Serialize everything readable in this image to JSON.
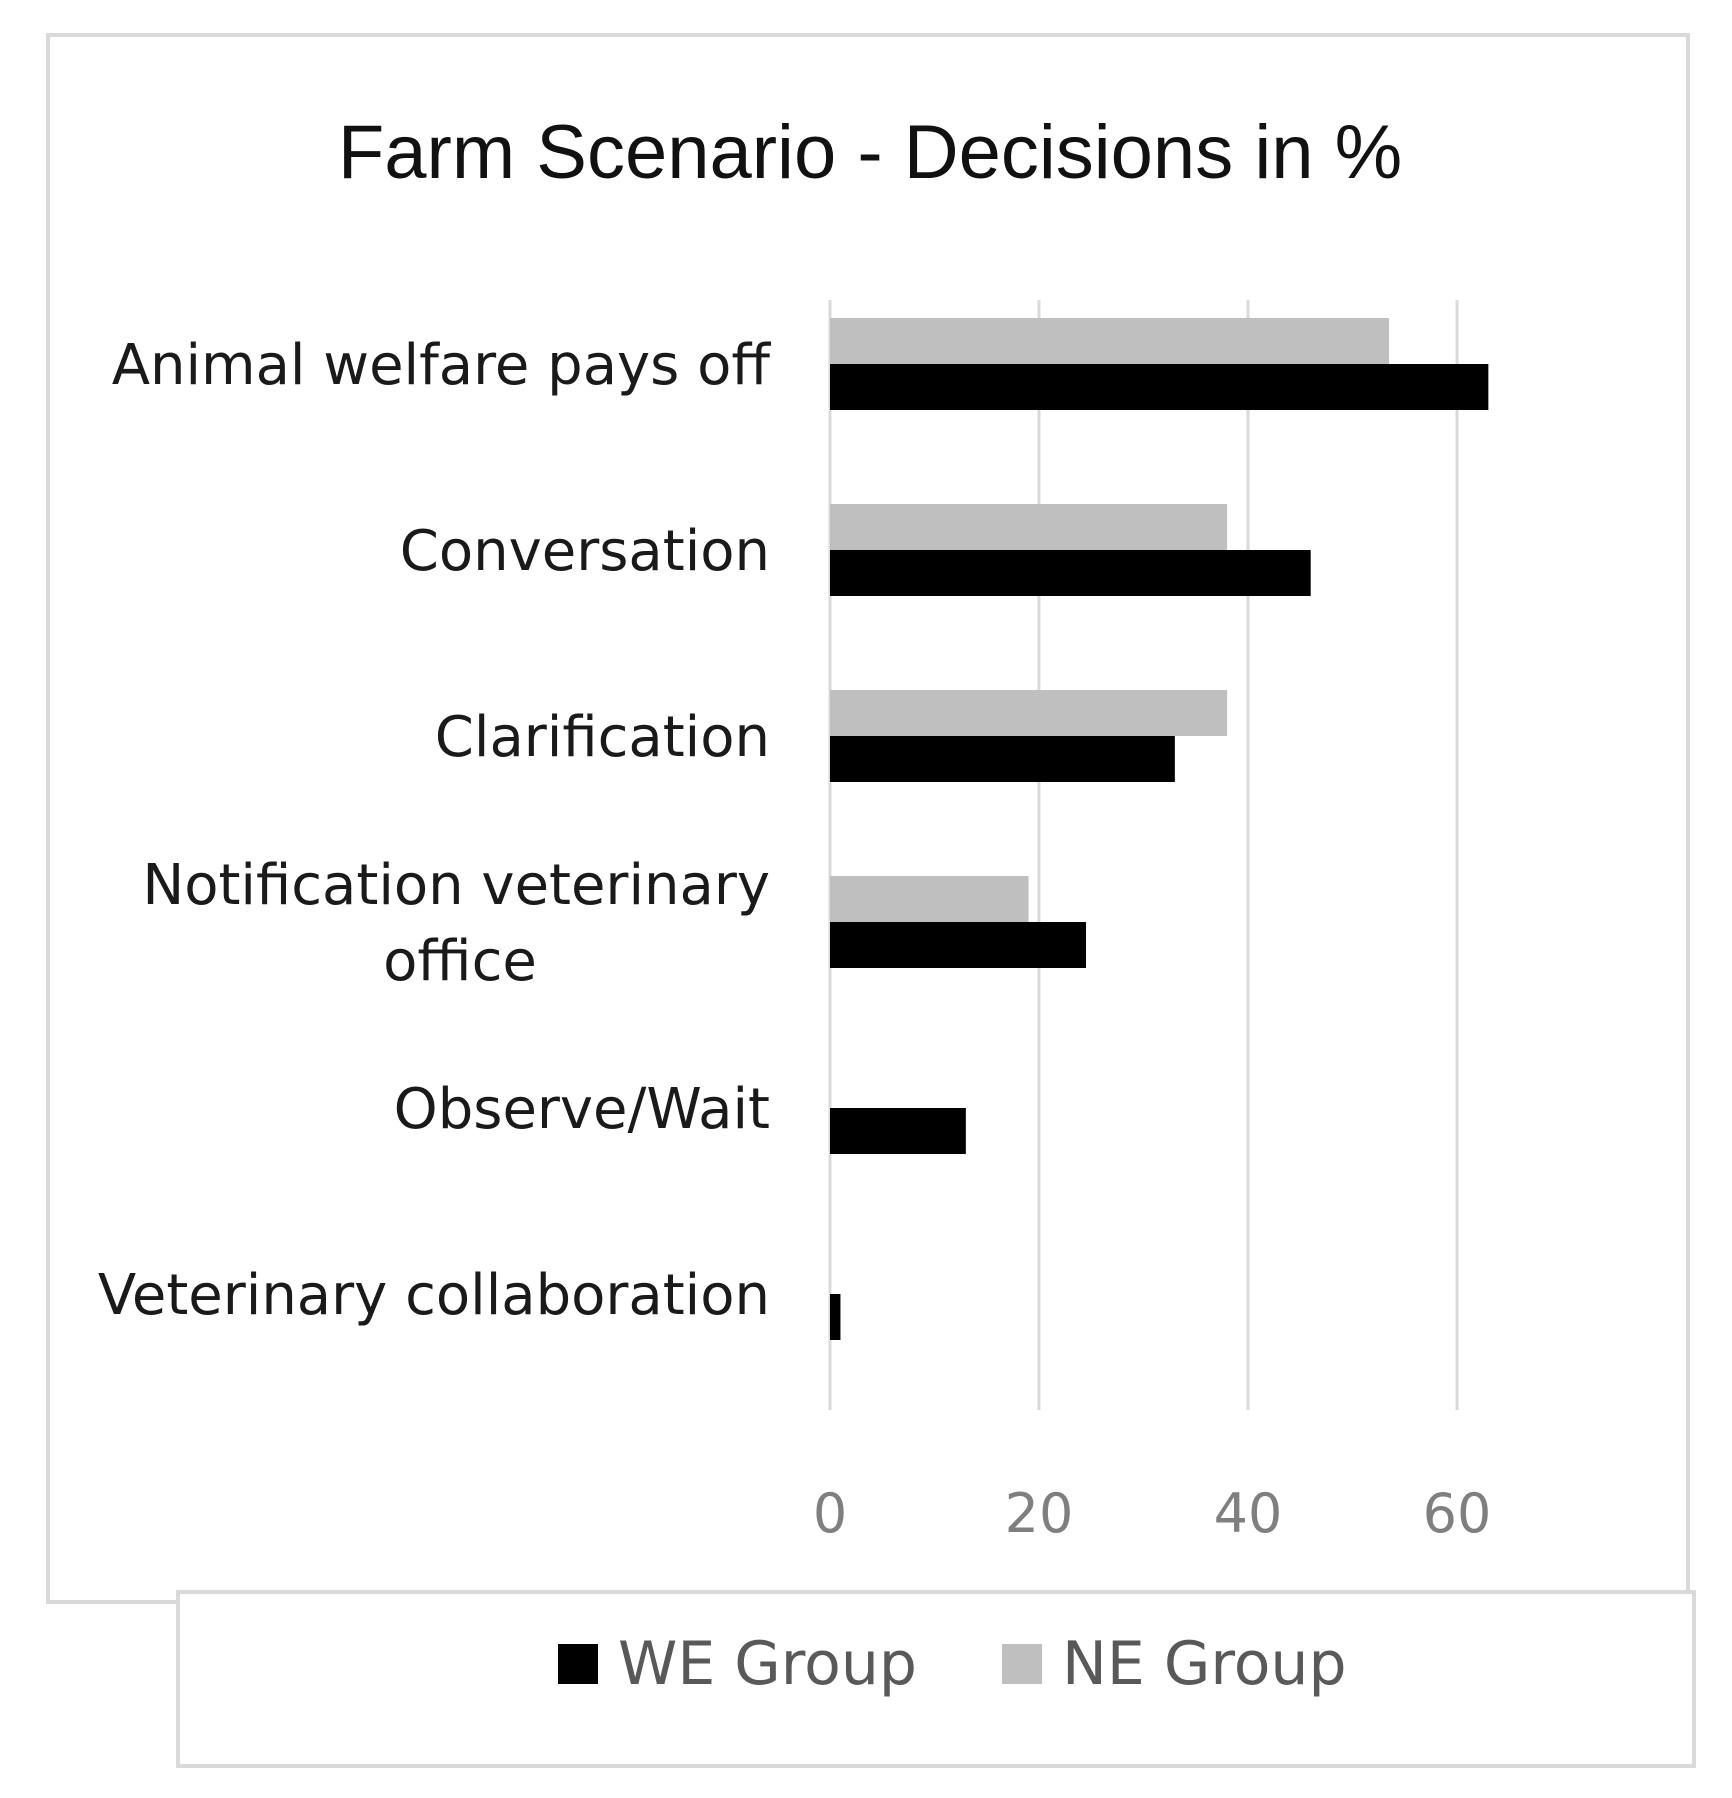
{
  "chart_data": {
    "type": "bar",
    "orientation": "horizontal",
    "title": "Farm Scenario - Decisions in %",
    "xlabel": "",
    "ylabel": "",
    "categories": [
      [
        "Animal welfare pays off"
      ],
      [
        "Conversation"
      ],
      [
        "Clarification"
      ],
      [
        "Notification veterinary",
        "office"
      ],
      [
        "Observe/Wait"
      ],
      [
        "Veterinary collaboration"
      ]
    ],
    "series": [
      {
        "name": "WE Group",
        "color": "#000000",
        "values": [
          63,
          46,
          33,
          24.5,
          13,
          1
        ]
      },
      {
        "name": "NE Group",
        "color": "#bfbfbf",
        "values": [
          53.5,
          38,
          38,
          19,
          0,
          0
        ]
      }
    ],
    "xlim": [
      0,
      60
    ],
    "xticks": [
      0,
      20,
      40,
      60
    ],
    "grid": true,
    "legend_position": "bottom"
  }
}
